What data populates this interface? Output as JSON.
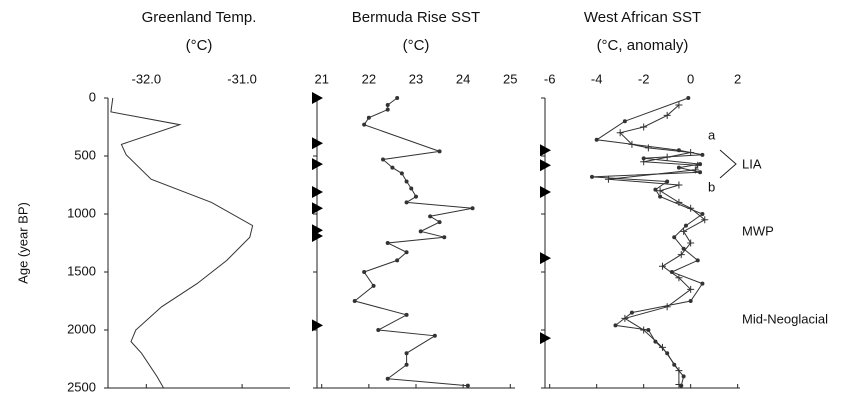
{
  "chart_data": [
    {
      "type": "line",
      "title": "Greenland Temp.",
      "subtitle": "(°C)",
      "ylabel": "Age (year BP)",
      "xlim": [
        -32.4,
        -30.5
      ],
      "xticks": [
        {
          "value": -32,
          "label": "-32.0"
        },
        {
          "value": -31,
          "label": "-31.0"
        }
      ],
      "ylim": [
        0,
        2500
      ],
      "yticks": [
        0,
        500,
        1000,
        1500,
        2000,
        2500
      ],
      "series": [
        {
          "color": "#333333",
          "marker": "none",
          "y": [
            0,
            120,
            230,
            400,
            490,
            700,
            900,
            1100,
            1200,
            1400,
            1600,
            1800,
            2000,
            2100,
            2200,
            2400,
            2500
          ],
          "values": [
            -32.35,
            -32.37,
            -31.65,
            -32.26,
            -32.21,
            -31.95,
            -31.32,
            -30.89,
            -30.92,
            -31.16,
            -31.47,
            -31.84,
            -32.11,
            -32.16,
            -32.05,
            -31.89,
            -31.82
          ]
        }
      ]
    },
    {
      "type": "line",
      "title": "Bermuda Rise SST",
      "subtitle": "(°C)",
      "xlim": [
        20.9,
        25.1
      ],
      "xticks": [
        21,
        22,
        23,
        24,
        25
      ],
      "ylim": [
        0,
        2500
      ],
      "markers": [
        0,
        390,
        570,
        810,
        950,
        1140,
        1190,
        1960
      ],
      "series": [
        {
          "color": "#333333",
          "marker": "dot",
          "y": [
            0,
            60,
            100,
            170,
            230,
            460,
            530,
            600,
            650,
            720,
            780,
            850,
            900,
            950,
            1020,
            1070,
            1150,
            1200,
            1250,
            1330,
            1400,
            1500,
            1620,
            1750,
            1870,
            2000,
            2050,
            2200,
            2300,
            2420,
            2480
          ],
          "values": [
            22.6,
            22.4,
            22.4,
            22.0,
            21.9,
            23.5,
            22.3,
            22.5,
            22.7,
            22.8,
            22.9,
            23.0,
            22.8,
            24.2,
            23.3,
            23.5,
            23.1,
            23.6,
            22.4,
            22.8,
            22.6,
            21.9,
            22.1,
            21.7,
            22.8,
            22.2,
            23.4,
            22.8,
            22.8,
            22.4,
            24.1
          ]
        }
      ]
    },
    {
      "type": "line",
      "title": "West African SST",
      "subtitle": "(°C, anomaly)",
      "xlim": [
        -6.2,
        2.1
      ],
      "xticks": [
        -6,
        -4,
        -2,
        0,
        2
      ],
      "ylim": [
        0,
        2500
      ],
      "markers": [
        450,
        580,
        810,
        1380,
        2070
      ],
      "annotations": [
        "a",
        "b",
        "LIA",
        "MWP",
        "Mid-Neoglacial"
      ],
      "series": [
        {
          "color": "#333333",
          "marker": "dot",
          "y": [
            0,
            200,
            360,
            450,
            490,
            520,
            570,
            600,
            640,
            680,
            720,
            790,
            850,
            1000,
            1100,
            1200,
            1300,
            1400,
            1500,
            1600,
            1750,
            1850,
            1960,
            2000,
            2100,
            2200,
            2300,
            2400,
            2480
          ],
          "values": [
            -0.1,
            -2.8,
            -4.0,
            -0.5,
            0.5,
            -2.0,
            0.4,
            -0.5,
            0.4,
            -4.2,
            -1.0,
            -1.5,
            -1.3,
            0.5,
            -0.2,
            -0.7,
            -0.3,
            0.3,
            -0.8,
            0.5,
            0.0,
            -2.5,
            -3.2,
            -1.8,
            -1.5,
            -1.0,
            -0.7,
            -0.3,
            -0.4
          ]
        },
        {
          "color": "#333333",
          "marker": "plus",
          "y": [
            60,
            150,
            250,
            300,
            400,
            430,
            470,
            510,
            550,
            580,
            620,
            700,
            750,
            800,
            900,
            950,
            1050,
            1150,
            1250,
            1350,
            1450,
            1550,
            1650,
            1800,
            1900,
            2000,
            2150,
            2350,
            2470
          ],
          "values": [
            -0.5,
            -1.0,
            -2.0,
            -3.0,
            -2.5,
            -1.8,
            0.0,
            -1.0,
            -2.0,
            0.3,
            0.2,
            -3.5,
            -0.5,
            -1.3,
            -0.5,
            0.0,
            0.6,
            -0.3,
            0.0,
            -0.4,
            -1.2,
            -0.5,
            0.0,
            -1.0,
            -2.8,
            -2.0,
            -1.2,
            -0.5,
            -0.5
          ]
        }
      ]
    }
  ]
}
